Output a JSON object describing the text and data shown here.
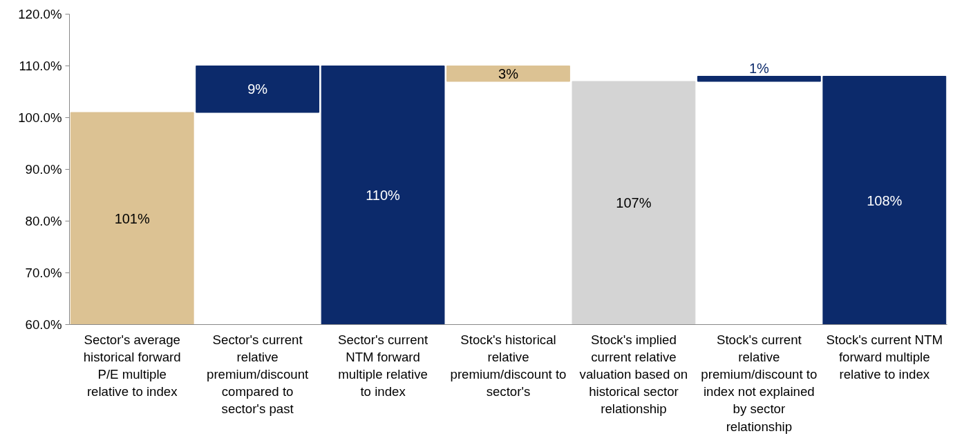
{
  "chart_data": {
    "type": "bar",
    "categories": [
      "Sector's average historical forward P/E multiple relative to index",
      "Sector's current relative premium/discount compared to sector's past",
      "Sector's current NTM forward multiple relative to index",
      "Stock's historical relative premium/discount to sector's",
      "Stock's implied current relative valuation based on historical sector relationship",
      "Stock's current relative premium/discount to index not explained by sector relationship",
      "Stock's current NTM forward multiple relative to index"
    ],
    "values": [
      101,
      9,
      110,
      3,
      107,
      1,
      108
    ],
    "base": [
      null,
      101,
      null,
      107,
      null,
      107,
      null
    ],
    "colors": [
      "#dcc293",
      "#0c2a6b",
      "#0c2a6b",
      "#dcc293",
      "#d4d4d4",
      "#0c2a6b",
      "#0c2a6b"
    ],
    "value_labels": [
      "101%",
      "9%",
      "110%",
      "3%",
      "107%",
      "1%",
      "108%"
    ],
    "ylim": [
      60,
      120
    ],
    "yticks": [
      {
        "value": 60,
        "label": "60.0%"
      },
      {
        "value": 70,
        "label": "70.0%"
      },
      {
        "value": 80,
        "label": "80.0%"
      },
      {
        "value": 90,
        "label": "90.0%"
      },
      {
        "value": 100,
        "label": "100.0%"
      },
      {
        "value": 110,
        "label": "110.0%"
      },
      {
        "value": 120,
        "label": "120.0%"
      }
    ],
    "grid": false
  }
}
